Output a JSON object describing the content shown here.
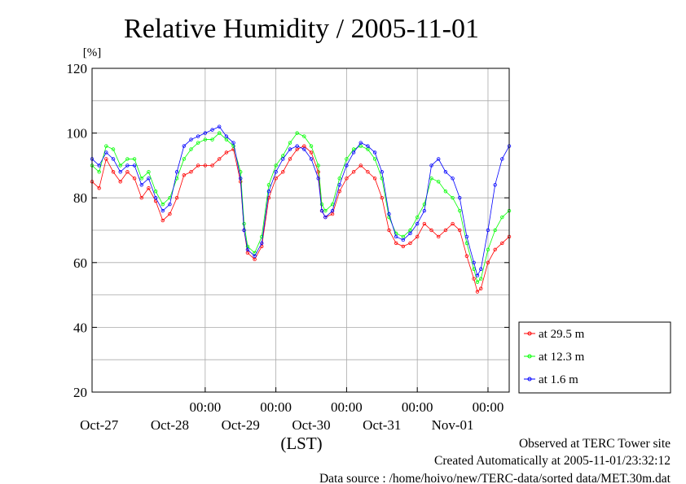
{
  "chart_data": {
    "type": "line",
    "title": "Relative Humidity / 2005-11-01",
    "ylabel": "[%]",
    "xlabel": "(LST)",
    "ylim": [
      20,
      120
    ],
    "yticks": [
      20,
      40,
      60,
      80,
      100,
      120
    ],
    "xlim": [
      -0.6,
      5.3
    ],
    "xtick_labels_time": [
      "00:00",
      "00:00",
      "00:00",
      "00:00",
      "00:00"
    ],
    "xtick_positions": [
      1,
      2,
      3,
      4,
      5
    ],
    "date_labels": [
      "Oct-27",
      "Oct-28",
      "Oct-29",
      "Oct-30",
      "Oct-31",
      "Nov-01"
    ],
    "date_label_positions": [
      0.5,
      1.5,
      2.5,
      3.5,
      4.5,
      5.5
    ],
    "grid": true,
    "legend_position": "lower-right outside",
    "series": [
      {
        "name": "at 29.5 m",
        "color": "#ff0000",
        "points": [
          [
            -0.6,
            85
          ],
          [
            -0.5,
            83
          ],
          [
            -0.4,
            92
          ],
          [
            -0.3,
            88
          ],
          [
            -0.2,
            85
          ],
          [
            -0.1,
            88
          ],
          [
            0,
            86
          ],
          [
            0.1,
            80
          ],
          [
            0.2,
            83
          ],
          [
            0.3,
            79
          ],
          [
            0.4,
            73
          ],
          [
            0.5,
            75
          ],
          [
            0.6,
            80
          ],
          [
            0.7,
            87
          ],
          [
            0.8,
            88
          ],
          [
            0.9,
            90
          ],
          [
            1,
            90
          ],
          [
            1.1,
            90
          ],
          [
            1.2,
            92
          ],
          [
            1.3,
            94
          ],
          [
            1.4,
            95
          ],
          [
            1.5,
            85
          ],
          [
            1.55,
            70
          ],
          [
            1.6,
            63
          ],
          [
            1.7,
            61
          ],
          [
            1.8,
            65
          ],
          [
            1.9,
            80
          ],
          [
            2,
            86
          ],
          [
            2.1,
            88
          ],
          [
            2.2,
            92
          ],
          [
            2.3,
            95
          ],
          [
            2.4,
            96
          ],
          [
            2.5,
            94
          ],
          [
            2.6,
            88
          ],
          [
            2.65,
            76
          ],
          [
            2.7,
            74
          ],
          [
            2.8,
            75
          ],
          [
            2.9,
            82
          ],
          [
            3,
            86
          ],
          [
            3.1,
            88
          ],
          [
            3.2,
            90
          ],
          [
            3.3,
            88
          ],
          [
            3.4,
            86
          ],
          [
            3.5,
            80
          ],
          [
            3.6,
            70
          ],
          [
            3.7,
            66
          ],
          [
            3.8,
            65
          ],
          [
            3.9,
            66
          ],
          [
            4,
            68
          ],
          [
            4.1,
            72
          ],
          [
            4.2,
            70
          ],
          [
            4.3,
            68
          ],
          [
            4.4,
            70
          ],
          [
            4.5,
            72
          ],
          [
            4.6,
            70
          ],
          [
            4.7,
            62
          ],
          [
            4.8,
            55
          ],
          [
            4.85,
            51
          ],
          [
            4.9,
            52
          ],
          [
            5,
            60
          ],
          [
            5.1,
            64
          ],
          [
            5.2,
            66
          ],
          [
            5.3,
            68
          ]
        ]
      },
      {
        "name": "at 12.3 m",
        "color": "#00ff00",
        "points": [
          [
            -0.6,
            90
          ],
          [
            -0.5,
            88
          ],
          [
            -0.4,
            96
          ],
          [
            -0.3,
            95
          ],
          [
            -0.2,
            90
          ],
          [
            -0.1,
            92
          ],
          [
            0,
            92
          ],
          [
            0.1,
            86
          ],
          [
            0.2,
            88
          ],
          [
            0.3,
            82
          ],
          [
            0.4,
            78
          ],
          [
            0.5,
            80
          ],
          [
            0.6,
            86
          ],
          [
            0.7,
            92
          ],
          [
            0.8,
            95
          ],
          [
            0.9,
            97
          ],
          [
            1,
            98
          ],
          [
            1.1,
            98
          ],
          [
            1.2,
            100
          ],
          [
            1.3,
            98
          ],
          [
            1.4,
            96
          ],
          [
            1.5,
            88
          ],
          [
            1.55,
            72
          ],
          [
            1.6,
            65
          ],
          [
            1.7,
            63
          ],
          [
            1.8,
            68
          ],
          [
            1.9,
            84
          ],
          [
            2,
            90
          ],
          [
            2.1,
            93
          ],
          [
            2.2,
            97
          ],
          [
            2.3,
            100
          ],
          [
            2.4,
            99
          ],
          [
            2.5,
            96
          ],
          [
            2.6,
            90
          ],
          [
            2.65,
            78
          ],
          [
            2.7,
            76
          ],
          [
            2.8,
            78
          ],
          [
            2.9,
            86
          ],
          [
            3,
            92
          ],
          [
            3.1,
            95
          ],
          [
            3.2,
            96
          ],
          [
            3.3,
            95
          ],
          [
            3.4,
            92
          ],
          [
            3.5,
            86
          ],
          [
            3.6,
            74
          ],
          [
            3.7,
            69
          ],
          [
            3.8,
            68
          ],
          [
            3.9,
            70
          ],
          [
            4,
            74
          ],
          [
            4.1,
            78
          ],
          [
            4.2,
            86
          ],
          [
            4.3,
            85
          ],
          [
            4.4,
            82
          ],
          [
            4.5,
            80
          ],
          [
            4.6,
            76
          ],
          [
            4.7,
            66
          ],
          [
            4.8,
            58
          ],
          [
            4.85,
            54
          ],
          [
            4.9,
            55
          ],
          [
            5,
            64
          ],
          [
            5.1,
            70
          ],
          [
            5.2,
            74
          ],
          [
            5.3,
            76
          ]
        ]
      },
      {
        "name": "at 1.6 m",
        "color": "#0000ff",
        "points": [
          [
            -0.6,
            92
          ],
          [
            -0.5,
            90
          ],
          [
            -0.4,
            94
          ],
          [
            -0.3,
            92
          ],
          [
            -0.2,
            88
          ],
          [
            -0.1,
            90
          ],
          [
            0,
            90
          ],
          [
            0.1,
            84
          ],
          [
            0.2,
            86
          ],
          [
            0.3,
            80
          ],
          [
            0.4,
            76
          ],
          [
            0.5,
            78
          ],
          [
            0.6,
            88
          ],
          [
            0.7,
            96
          ],
          [
            0.8,
            98
          ],
          [
            0.9,
            99
          ],
          [
            1,
            100
          ],
          [
            1.1,
            101
          ],
          [
            1.2,
            102
          ],
          [
            1.3,
            99
          ],
          [
            1.4,
            97
          ],
          [
            1.5,
            86
          ],
          [
            1.55,
            70
          ],
          [
            1.6,
            64
          ],
          [
            1.7,
            62
          ],
          [
            1.8,
            66
          ],
          [
            1.9,
            82
          ],
          [
            2,
            88
          ],
          [
            2.1,
            92
          ],
          [
            2.2,
            95
          ],
          [
            2.3,
            96
          ],
          [
            2.4,
            95
          ],
          [
            2.5,
            92
          ],
          [
            2.6,
            86
          ],
          [
            2.65,
            76
          ],
          [
            2.7,
            74
          ],
          [
            2.8,
            76
          ],
          [
            2.9,
            84
          ],
          [
            3,
            90
          ],
          [
            3.1,
            94
          ],
          [
            3.2,
            97
          ],
          [
            3.3,
            96
          ],
          [
            3.4,
            94
          ],
          [
            3.5,
            88
          ],
          [
            3.6,
            75
          ],
          [
            3.7,
            68
          ],
          [
            3.8,
            67
          ],
          [
            3.9,
            69
          ],
          [
            4,
            72
          ],
          [
            4.1,
            76
          ],
          [
            4.2,
            90
          ],
          [
            4.3,
            92
          ],
          [
            4.4,
            88
          ],
          [
            4.5,
            86
          ],
          [
            4.6,
            80
          ],
          [
            4.7,
            68
          ],
          [
            4.8,
            60
          ],
          [
            4.85,
            56
          ],
          [
            4.9,
            58
          ],
          [
            5,
            70
          ],
          [
            5.1,
            84
          ],
          [
            5.2,
            92
          ],
          [
            5.3,
            96
          ]
        ]
      }
    ],
    "annotations": [
      "Observed at TERC Tower site",
      "Created Automatically at 2005-11-01/23:32:12",
      "Data source : /home/hoivo/new/TERC-data/sorted  data/MET.30m.dat"
    ]
  }
}
